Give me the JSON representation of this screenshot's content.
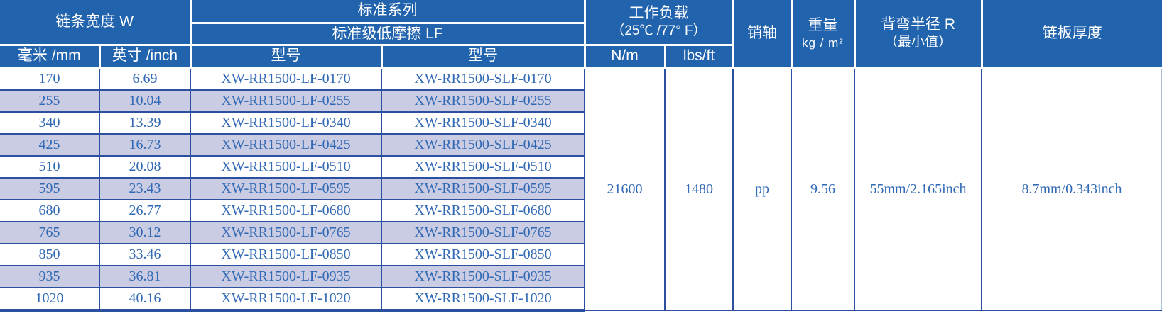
{
  "colors": {
    "header_bg": "#2263ae",
    "header_text": "#ffffff",
    "grid_line": "#2d4fa0",
    "stripe_bg": "#cacce3",
    "data_text": "#3169b5"
  },
  "header": {
    "chain_width": {
      "title": "链条宽度 W",
      "sub_mm": "毫米 /mm",
      "sub_inch": "英寸 /inch"
    },
    "series": {
      "title": "标准系列",
      "subtitle": "标准级低摩擦 LF",
      "model_label_lf": "型号",
      "model_label_slf": "型号"
    },
    "working_load": {
      "title": "工作负载",
      "subtitle": "（25℃ /77° F）",
      "sub_nm": "N/m",
      "sub_lbsft": "lbs/ft"
    },
    "pin": "销轴",
    "weight": {
      "title": "重量",
      "unit": "kg / m²"
    },
    "bend_radius": {
      "line1": "背弯半径 R",
      "line2": "（最小值）"
    },
    "plate_thickness": "链板厚度"
  },
  "table": {
    "rows": [
      {
        "mm": "170",
        "inch": "6.69",
        "model_lf": "XW-RR1500-LF-0170",
        "model_slf": "XW-RR1500-SLF-0170"
      },
      {
        "mm": "255",
        "inch": "10.04",
        "model_lf": "XW-RR1500-LF-0255",
        "model_slf": "XW-RR1500-SLF-0255"
      },
      {
        "mm": "340",
        "inch": "13.39",
        "model_lf": "XW-RR1500-LF-0340",
        "model_slf": "XW-RR1500-SLF-0340"
      },
      {
        "mm": "425",
        "inch": "16.73",
        "model_lf": "XW-RR1500-LF-0425",
        "model_slf": "XW-RR1500-SLF-0425"
      },
      {
        "mm": "510",
        "inch": "20.08",
        "model_lf": "XW-RR1500-LF-0510",
        "model_slf": "XW-RR1500-SLF-0510"
      },
      {
        "mm": "595",
        "inch": "23.43",
        "model_lf": "XW-RR1500-LF-0595",
        "model_slf": "XW-RR1500-SLF-0595"
      },
      {
        "mm": "680",
        "inch": "26.77",
        "model_lf": "XW-RR1500-LF-0680",
        "model_slf": "XW-RR1500-SLF-0680"
      },
      {
        "mm": "765",
        "inch": "30.12",
        "model_lf": "XW-RR1500-LF-0765",
        "model_slf": "XW-RR1500-SLF-0765"
      },
      {
        "mm": "850",
        "inch": "33.46",
        "model_lf": "XW-RR1500-LF-0850",
        "model_slf": "XW-RR1500-SLF-0850"
      },
      {
        "mm": "935",
        "inch": "36.81",
        "model_lf": "XW-RR1500-LF-0935",
        "model_slf": "XW-RR1500-SLF-0935"
      },
      {
        "mm": "1020",
        "inch": "40.16",
        "model_lf": "XW-RR1500-LF-1020",
        "model_slf": "XW-RR1500-SLF-1020"
      }
    ],
    "merged": {
      "load_nm": "21600",
      "load_lbsft": "1480",
      "pin": "pp",
      "weight": "9.56",
      "bend_radius": "55mm/2.165inch",
      "plate_thickness": "8.7mm/0.343inch"
    }
  }
}
